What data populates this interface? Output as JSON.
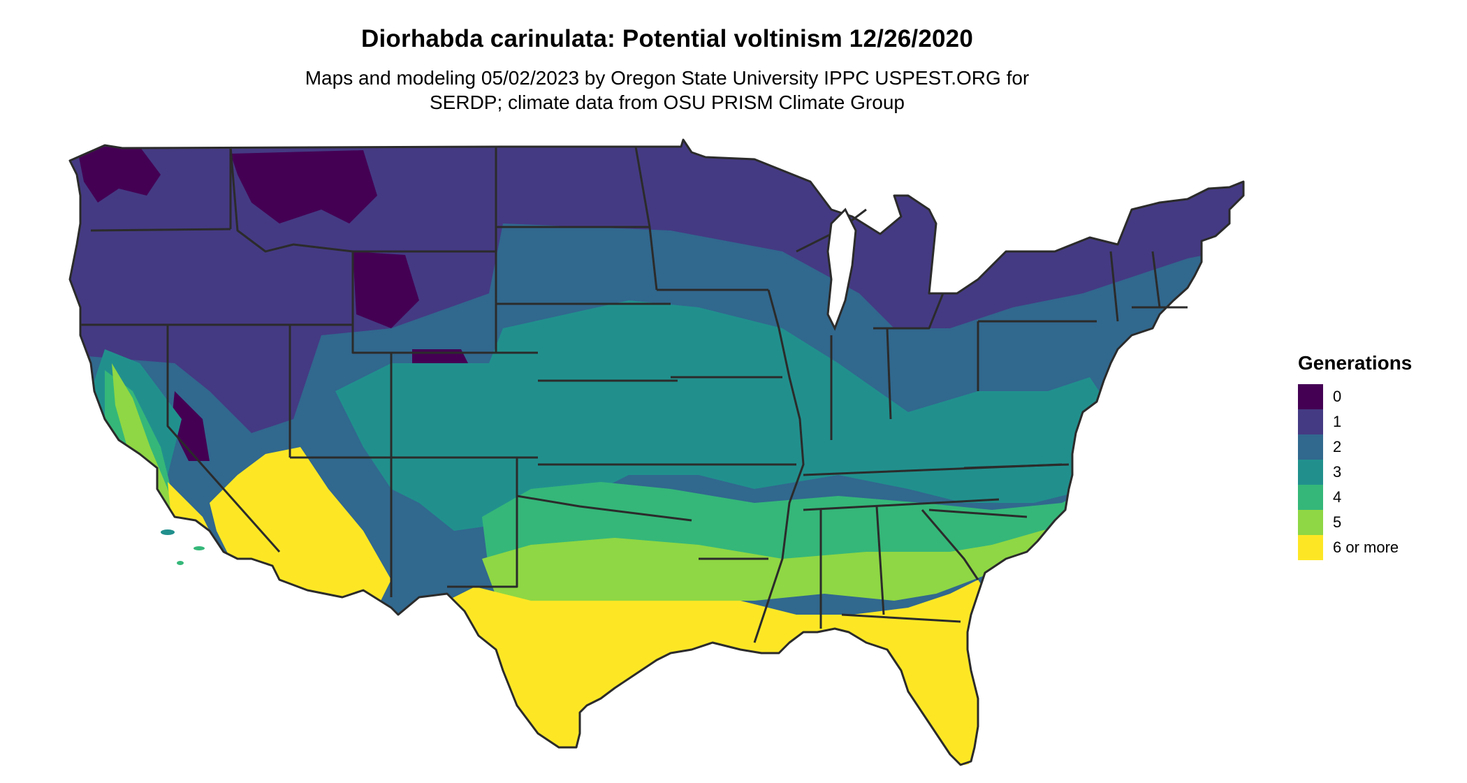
{
  "title": "Diorhabda carinulata: Potential voltinism 12/26/2020",
  "subtitle": {
    "line1": "Maps and modeling 05/02/2023 by Oregon State University IPPC USPEST.ORG for",
    "line2": "SERDP; climate data from OSU PRISM Climate Group"
  },
  "legend": {
    "title": "Generations",
    "items": [
      {
        "label": "0",
        "color": "#440154"
      },
      {
        "label": "1",
        "color": "#443a83"
      },
      {
        "label": "2",
        "color": "#31688e"
      },
      {
        "label": "3",
        "color": "#21908d"
      },
      {
        "label": "4",
        "color": "#35b779"
      },
      {
        "label": "5",
        "color": "#8fd744"
      },
      {
        "label": "6 or more",
        "color": "#fde725"
      }
    ]
  },
  "colors": {
    "state_border": "#2b2b2b",
    "background": "#ffffff"
  }
}
